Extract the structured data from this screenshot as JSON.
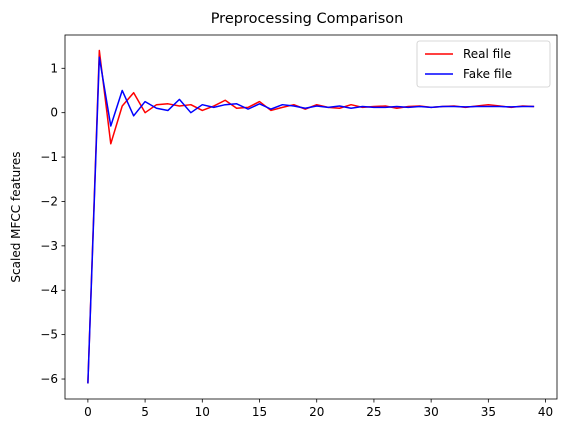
{
  "chart_data": {
    "type": "line",
    "title": "Preprocessing Comparison",
    "xlabel": "",
    "ylabel": "Scaled MFCC features",
    "xlim": [
      -2,
      41
    ],
    "ylim": [
      -6.45,
      1.75
    ],
    "xticks": [
      0,
      5,
      10,
      15,
      20,
      25,
      30,
      35,
      40
    ],
    "yticks": [
      -6,
      -5,
      -4,
      -3,
      -2,
      -1,
      0,
      1
    ],
    "grid": false,
    "legend_position": "top-right",
    "x": [
      0,
      1,
      2,
      3,
      4,
      5,
      6,
      7,
      8,
      9,
      10,
      11,
      12,
      13,
      14,
      15,
      16,
      17,
      18,
      19,
      20,
      21,
      22,
      23,
      24,
      25,
      26,
      27,
      28,
      29,
      30,
      31,
      32,
      33,
      34,
      35,
      36,
      37,
      38,
      39
    ],
    "series": [
      {
        "name": "Real file",
        "color": "#ff0000",
        "values": [
          -6.1,
          1.4,
          -0.7,
          0.15,
          0.45,
          0.0,
          0.18,
          0.2,
          0.15,
          0.18,
          0.05,
          0.15,
          0.28,
          0.1,
          0.12,
          0.25,
          0.05,
          0.12,
          0.18,
          0.08,
          0.18,
          0.12,
          0.1,
          0.18,
          0.12,
          0.14,
          0.15,
          0.1,
          0.14,
          0.15,
          0.12,
          0.14,
          0.15,
          0.12,
          0.15,
          0.18,
          0.15,
          0.12,
          0.15,
          0.14
        ]
      },
      {
        "name": "Fake file",
        "color": "#0000ff",
        "values": [
          -6.1,
          1.25,
          -0.3,
          0.5,
          -0.07,
          0.25,
          0.1,
          0.05,
          0.3,
          0.0,
          0.18,
          0.12,
          0.18,
          0.2,
          0.08,
          0.2,
          0.08,
          0.18,
          0.15,
          0.1,
          0.15,
          0.12,
          0.15,
          0.1,
          0.14,
          0.12,
          0.12,
          0.14,
          0.12,
          0.14,
          0.12,
          0.14,
          0.14,
          0.13,
          0.14,
          0.14,
          0.14,
          0.13,
          0.14,
          0.14
        ]
      }
    ]
  }
}
